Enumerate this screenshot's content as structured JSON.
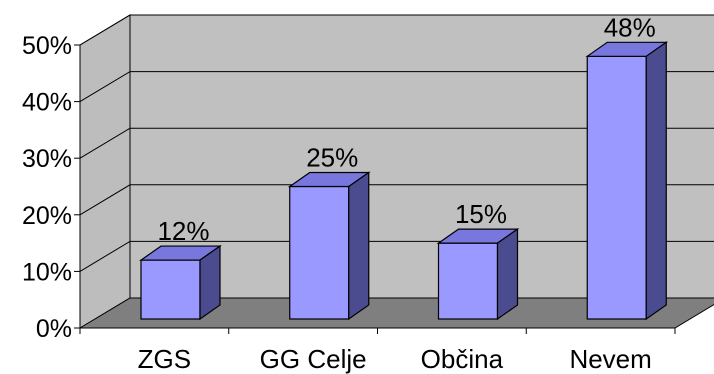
{
  "chart_data": {
    "type": "bar",
    "title": "",
    "xlabel": "",
    "ylabel": "",
    "categories": [
      "ZGS",
      "GG Celje",
      "Občina",
      "Nevem"
    ],
    "values": [
      12,
      25,
      15,
      48
    ],
    "data_labels": [
      "12%",
      "25%",
      "15%",
      "48%"
    ],
    "ylim": [
      0,
      50
    ],
    "yticks": [
      0,
      10,
      20,
      30,
      40,
      50
    ],
    "ytick_labels": [
      "0%",
      "10%",
      "20%",
      "30%",
      "40%",
      "50%"
    ],
    "grid": true,
    "legend": "none",
    "style": "3d-column",
    "colors": {
      "bar_front": "#9999FF",
      "bar_top": "#7777DD",
      "bar_side": "#4B4B8F",
      "back_wall": "#C0C0C0",
      "side_wall": "#BDBDBD",
      "floor": "#7F7F7F",
      "outline": "#000000"
    }
  }
}
